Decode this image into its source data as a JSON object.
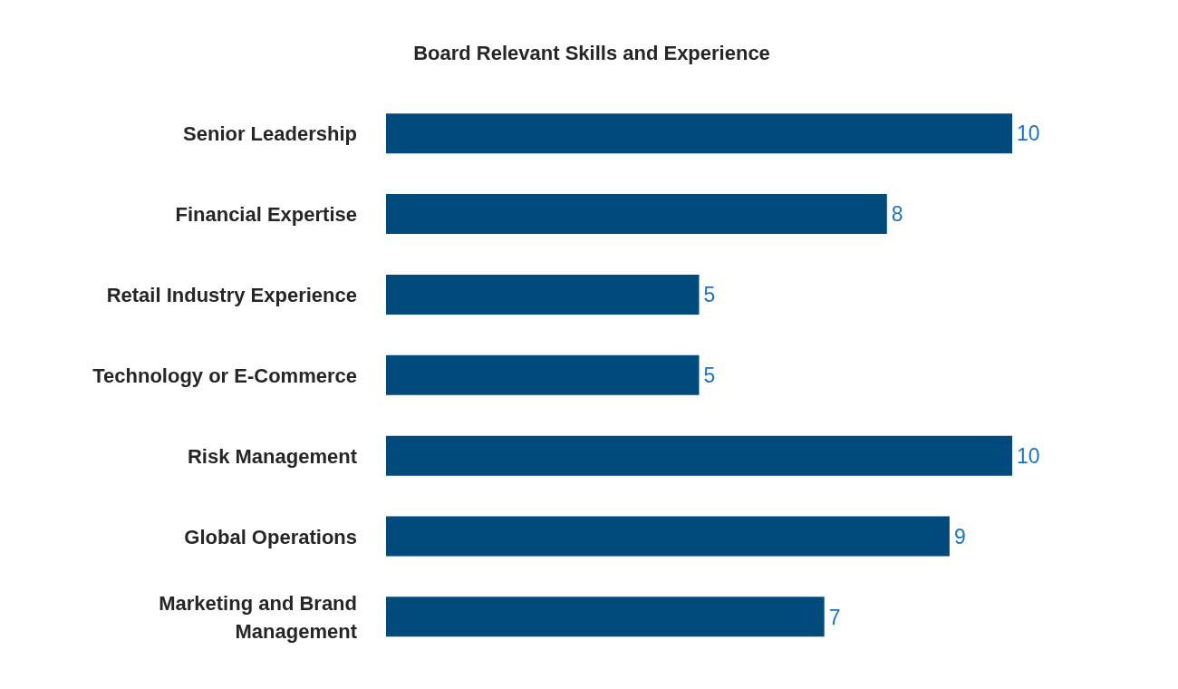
{
  "chart_data": {
    "type": "bar",
    "orientation": "horizontal",
    "title": "Board Relevant Skills and Experience",
    "categories": [
      "Senior Leadership",
      "Financial Expertise",
      "Retail Industry Experience",
      "Technology or E-Commerce",
      "Risk Management",
      "Global Operations",
      "Marketing and Brand Management"
    ],
    "values": [
      10,
      8,
      5,
      5,
      10,
      9,
      7
    ],
    "color": "#004a7c",
    "data_labels": true
  }
}
